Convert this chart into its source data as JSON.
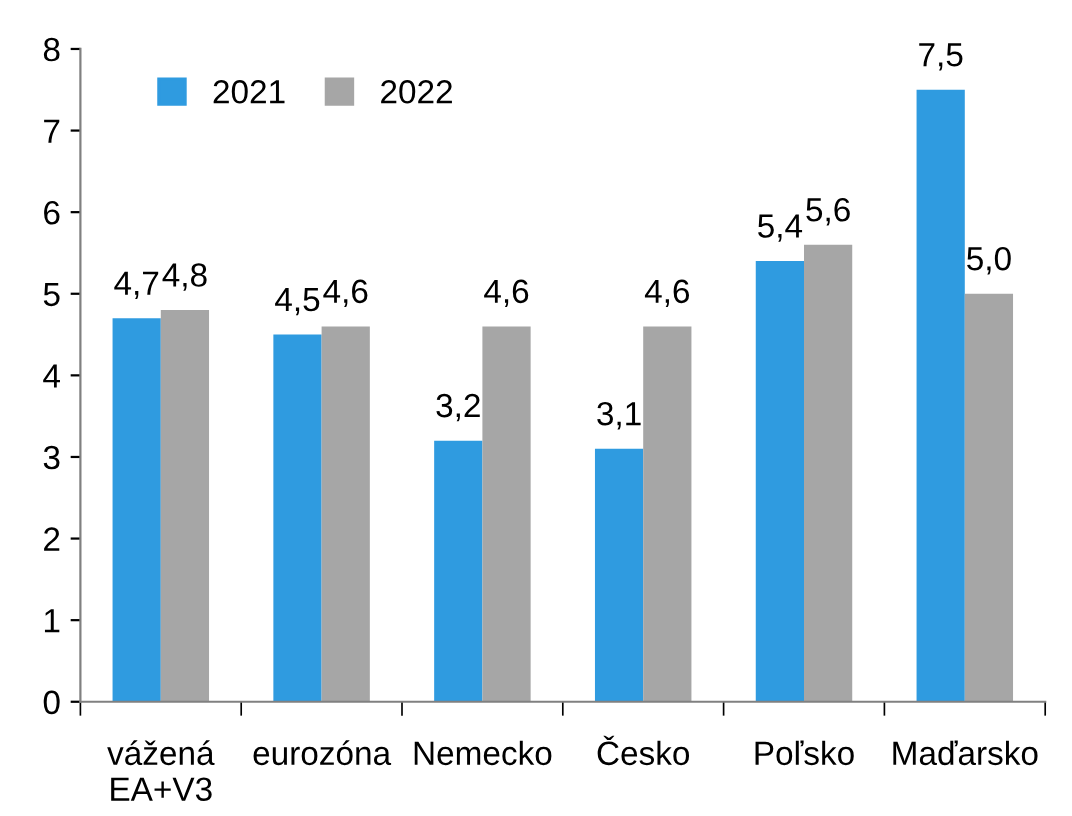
{
  "chart_data": {
    "type": "bar",
    "categories": [
      "vážená\nEA+V3",
      "eurozóna",
      "Nemecko",
      "Česko",
      "Poľsko",
      "Maďarsko"
    ],
    "series": [
      {
        "name": "2021",
        "color": "#2f9be0",
        "values": [
          4.7,
          4.5,
          3.2,
          3.1,
          5.4,
          7.5
        ],
        "value_labels": [
          "4,7",
          "4,5",
          "3,2",
          "3,1",
          "5,4",
          "7,5"
        ]
      },
      {
        "name": "2022",
        "color": "#a6a6a6",
        "values": [
          4.8,
          4.6,
          4.6,
          4.6,
          5.6,
          5.0
        ],
        "value_labels": [
          "4,8",
          "4,6",
          "4,6",
          "4,6",
          "5,6",
          "5,0"
        ]
      }
    ],
    "ylim": [
      0,
      8
    ],
    "yticks": [
      0,
      1,
      2,
      3,
      4,
      5,
      6,
      7,
      8
    ],
    "grid": false,
    "legend": "top left"
  }
}
